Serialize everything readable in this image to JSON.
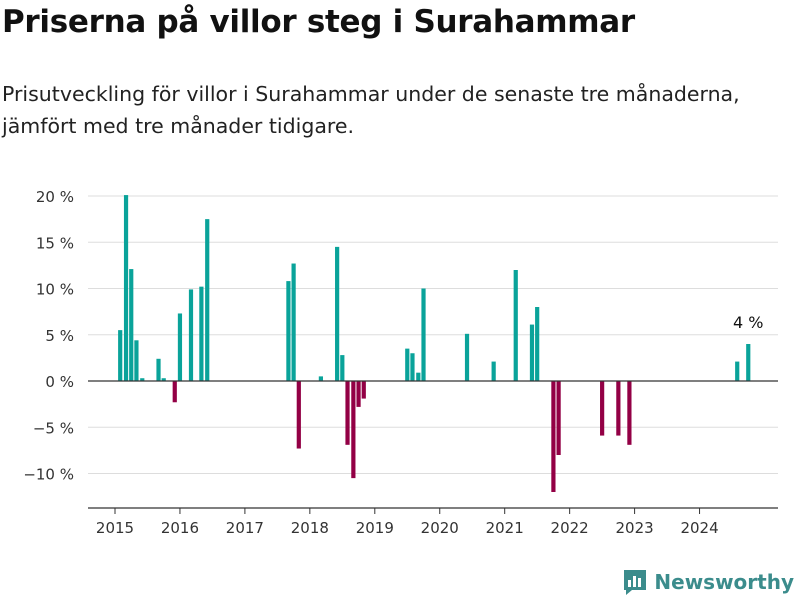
{
  "title": "Priserna på villor steg i Surahammar",
  "subtitle": "Prisutveckling för villor i Surahammar under de senaste tre månaderna, jämfört med tre månader tidigare.",
  "brand": "Newsworthy",
  "colors": {
    "positive": "#0aa39a",
    "negative": "#930045",
    "grid": "#dddddd",
    "axis": "#333333",
    "brand": "#3b8c8c"
  },
  "chart_data": {
    "type": "bar",
    "title": "Priserna på villor steg i Surahammar",
    "xlabel": "",
    "ylabel": "",
    "ylim": [
      -14,
      21
    ],
    "xlim": [
      2014.6,
      2025.6
    ],
    "yticks": [
      20,
      15,
      10,
      5,
      0,
      -5,
      -10
    ],
    "ytick_labels": [
      "20 %",
      "15 %",
      "10 %",
      "5 %",
      "0 %",
      "−5 %",
      "−10 %"
    ],
    "xticks": [
      2015,
      2016,
      2017,
      2018,
      2019,
      2020,
      2021,
      2022,
      2023,
      2024
    ],
    "xtick_labels": [
      "2015",
      "2016",
      "2017",
      "2018",
      "2019",
      "2020",
      "2021",
      "2022",
      "2023",
      "2024"
    ],
    "series": [
      {
        "name": "Prisutveckling",
        "x": [
          2015.08,
          2015.17,
          2015.25,
          2015.33,
          2015.42,
          2015.67,
          2015.75,
          2015.92,
          2016.0,
          2016.17,
          2016.33,
          2016.42,
          2017.67,
          2017.75,
          2017.83,
          2018.17,
          2018.42,
          2018.5,
          2018.58,
          2018.67,
          2018.75,
          2018.83,
          2019.5,
          2019.58,
          2019.67,
          2019.75,
          2020.42,
          2020.83,
          2021.17,
          2021.42,
          2021.5,
          2021.75,
          2021.83,
          2022.5,
          2022.75,
          2022.92,
          2024.58,
          2024.75
        ],
        "values": [
          5.5,
          20.1,
          12.1,
          4.4,
          0.3,
          2.4,
          0.3,
          -2.3,
          7.3,
          9.9,
          10.2,
          17.5,
          10.8,
          12.7,
          -7.3,
          0.5,
          14.5,
          2.8,
          -6.9,
          -10.5,
          -2.8,
          -1.9,
          3.5,
          3.0,
          0.9,
          10.0,
          5.1,
          2.1,
          12.0,
          6.1,
          8.0,
          -12.0,
          -8.0,
          -5.9,
          -5.9,
          -6.9,
          2.1,
          4.0
        ]
      }
    ],
    "annotation": {
      "text": "4 %",
      "x": 2024.75,
      "value": 4.0
    }
  }
}
